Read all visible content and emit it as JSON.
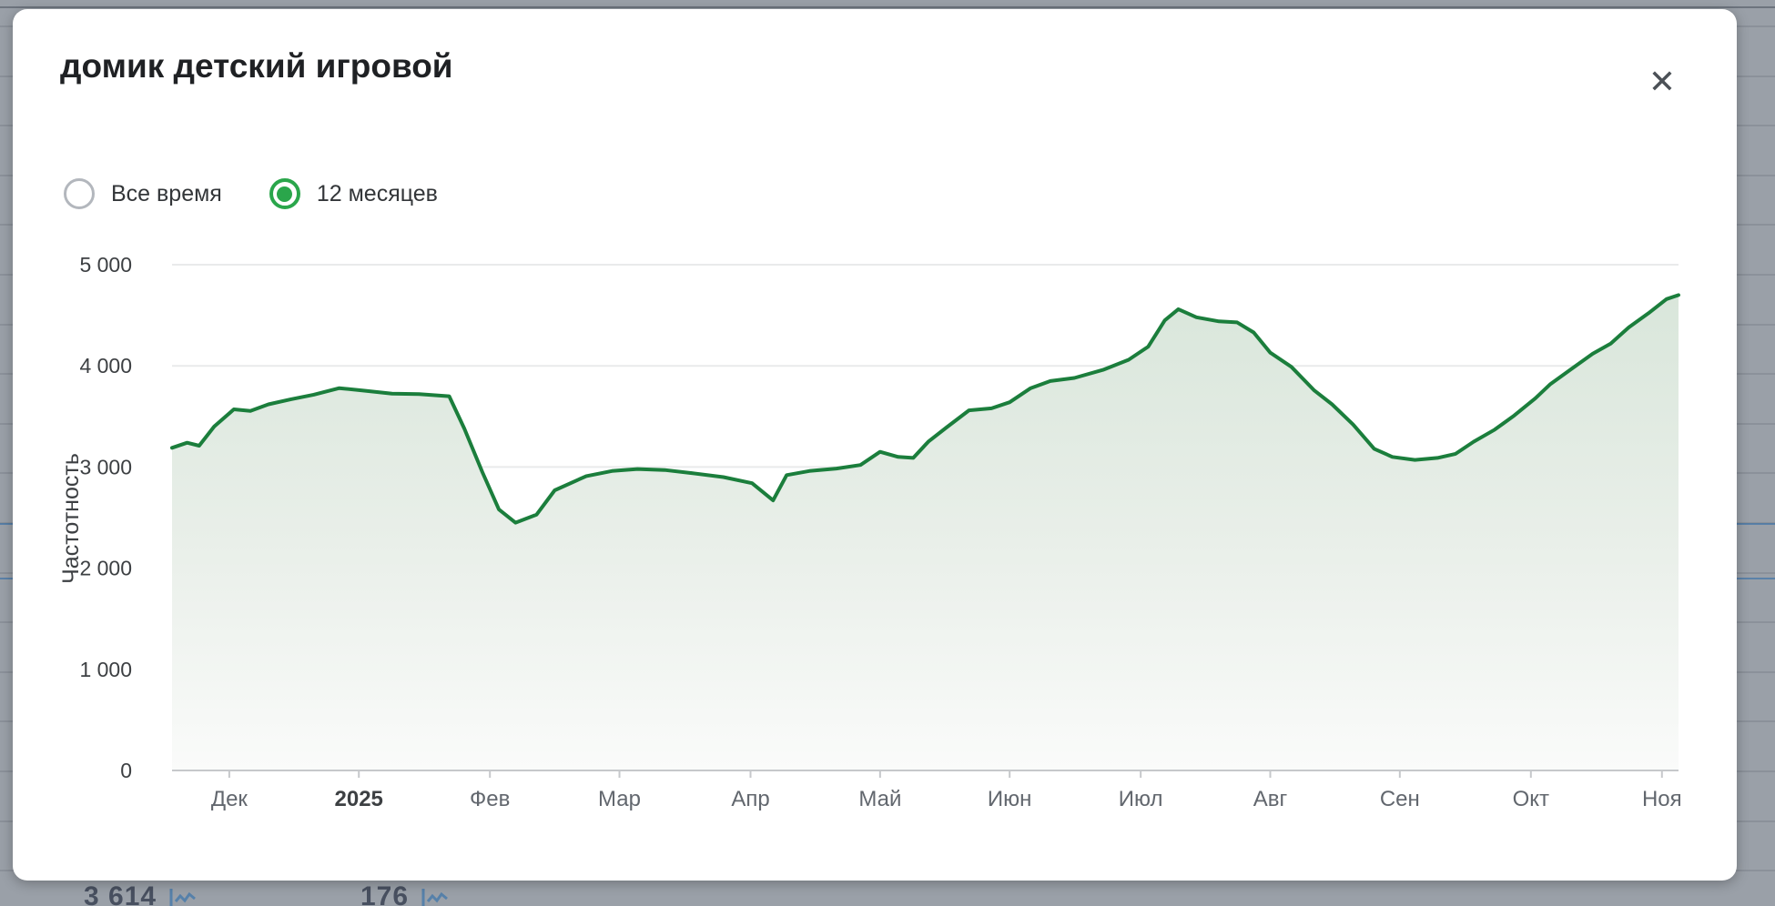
{
  "modal": {
    "title": "домик детский игровой",
    "close_icon_glyph": "✕"
  },
  "time_range_options": [
    {
      "label": "Все время",
      "selected": false
    },
    {
      "label": "12 месяцев",
      "selected": true
    }
  ],
  "colors": {
    "accent_green": "#2aa64b",
    "line_green": "#1b7e3c",
    "fill_top": "#d7e5d9",
    "fill_mid": "#e9efe9",
    "fill_bottom": "#fafbfa",
    "overlay_gray": "#9aa0a8",
    "grid_line": "#e9eaeb",
    "axis_line": "#c6c8cb",
    "tick_text": "#3d4043",
    "month_text": "#62676e"
  },
  "chart_data": {
    "type": "area",
    "title": "",
    "ylabel": "Частотность",
    "xlabel": "",
    "ylim": [
      0,
      5000
    ],
    "grid": true,
    "legend": "none",
    "y_ticks": [
      {
        "value": 0,
        "label": "0"
      },
      {
        "value": 1000,
        "label": "1 000"
      },
      {
        "value": 2000,
        "label": "2 000"
      },
      {
        "value": 3000,
        "label": "3 000"
      },
      {
        "value": 4000,
        "label": "4 000"
      },
      {
        "value": 5000,
        "label": "5 000"
      }
    ],
    "x_ticks": [
      {
        "label": "Дек",
        "f": 0.038,
        "bold": false
      },
      {
        "label": "2025",
        "f": 0.124,
        "bold": true
      },
      {
        "label": "Фев",
        "f": 0.211,
        "bold": false
      },
      {
        "label": "Мар",
        "f": 0.297,
        "bold": false
      },
      {
        "label": "Апр",
        "f": 0.384,
        "bold": false
      },
      {
        "label": "Май",
        "f": 0.47,
        "bold": false
      },
      {
        "label": "Июн",
        "f": 0.556,
        "bold": false
      },
      {
        "label": "Июл",
        "f": 0.643,
        "bold": false
      },
      {
        "label": "Авг",
        "f": 0.729,
        "bold": false
      },
      {
        "label": "Сен",
        "f": 0.815,
        "bold": false
      },
      {
        "label": "Окт",
        "f": 0.902,
        "bold": false
      },
      {
        "label": "Ноя",
        "f": 0.989,
        "bold": false
      }
    ],
    "series": [
      {
        "name": "Частотность",
        "points": [
          [
            0.0,
            3190
          ],
          [
            0.01,
            3240
          ],
          [
            0.018,
            3210
          ],
          [
            0.028,
            3400
          ],
          [
            0.041,
            3570
          ],
          [
            0.052,
            3555
          ],
          [
            0.064,
            3620
          ],
          [
            0.079,
            3670
          ],
          [
            0.094,
            3715
          ],
          [
            0.111,
            3780
          ],
          [
            0.127,
            3755
          ],
          [
            0.146,
            3725
          ],
          [
            0.164,
            3720
          ],
          [
            0.184,
            3700
          ],
          [
            0.194,
            3380
          ],
          [
            0.206,
            2950
          ],
          [
            0.217,
            2580
          ],
          [
            0.228,
            2450
          ],
          [
            0.242,
            2530
          ],
          [
            0.254,
            2770
          ],
          [
            0.275,
            2910
          ],
          [
            0.292,
            2960
          ],
          [
            0.309,
            2980
          ],
          [
            0.327,
            2970
          ],
          [
            0.345,
            2940
          ],
          [
            0.366,
            2900
          ],
          [
            0.385,
            2840
          ],
          [
            0.399,
            2670
          ],
          [
            0.408,
            2920
          ],
          [
            0.423,
            2960
          ],
          [
            0.441,
            2985
          ],
          [
            0.457,
            3020
          ],
          [
            0.47,
            3150
          ],
          [
            0.482,
            3100
          ],
          [
            0.492,
            3090
          ],
          [
            0.502,
            3250
          ],
          [
            0.514,
            3390
          ],
          [
            0.529,
            3560
          ],
          [
            0.544,
            3580
          ],
          [
            0.556,
            3640
          ],
          [
            0.57,
            3780
          ],
          [
            0.583,
            3850
          ],
          [
            0.599,
            3880
          ],
          [
            0.618,
            3960
          ],
          [
            0.635,
            4060
          ],
          [
            0.648,
            4190
          ],
          [
            0.659,
            4450
          ],
          [
            0.668,
            4560
          ],
          [
            0.68,
            4480
          ],
          [
            0.695,
            4440
          ],
          [
            0.707,
            4430
          ],
          [
            0.718,
            4330
          ],
          [
            0.729,
            4130
          ],
          [
            0.743,
            3990
          ],
          [
            0.758,
            3760
          ],
          [
            0.77,
            3620
          ],
          [
            0.784,
            3420
          ],
          [
            0.798,
            3180
          ],
          [
            0.81,
            3100
          ],
          [
            0.825,
            3070
          ],
          [
            0.84,
            3090
          ],
          [
            0.852,
            3130
          ],
          [
            0.864,
            3250
          ],
          [
            0.878,
            3370
          ],
          [
            0.891,
            3510
          ],
          [
            0.905,
            3680
          ],
          [
            0.915,
            3820
          ],
          [
            0.929,
            3970
          ],
          [
            0.943,
            4120
          ],
          [
            0.955,
            4220
          ],
          [
            0.967,
            4380
          ],
          [
            0.98,
            4520
          ],
          [
            0.992,
            4660
          ],
          [
            1.0,
            4700
          ]
        ]
      }
    ]
  },
  "background_page": {
    "partial_rows": [
      {
        "value": "3 614",
        "icon": "sparkline-icon"
      },
      {
        "value": "176",
        "icon": "sparkline-icon"
      }
    ]
  }
}
